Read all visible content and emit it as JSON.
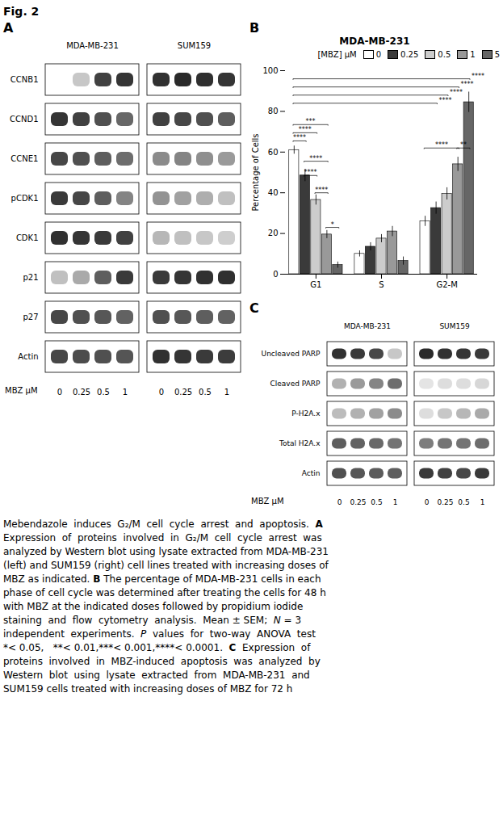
{
  "title": "Fig. 2",
  "chart_data": [
    {
      "type": "blot",
      "label": "A",
      "lane_label": "MBZ μM",
      "lanes": [
        0,
        0.25,
        0.5,
        1
      ],
      "rows": [
        "CCNB1",
        "CCND1",
        "CCNE1",
        "pCDK1",
        "CDK1",
        "p21",
        "p27",
        "Actin"
      ],
      "series": [
        {
          "name": "MDA-MB-231",
          "values": [
            [
              0.0,
              0.25,
              0.85,
              0.9
            ],
            [
              0.9,
              0.85,
              0.78,
              0.68
            ],
            [
              0.82,
              0.78,
              0.72,
              0.65
            ],
            [
              0.88,
              0.82,
              0.72,
              0.55
            ],
            [
              0.92,
              0.9,
              0.88,
              0.85
            ],
            [
              0.28,
              0.38,
              0.72,
              0.88
            ],
            [
              0.82,
              0.78,
              0.75,
              0.7
            ],
            [
              0.82,
              0.8,
              0.78,
              0.76
            ]
          ]
        },
        {
          "name": "SUM159",
          "values": [
            [
              0.92,
              0.95,
              0.93,
              0.9
            ],
            [
              0.85,
              0.82,
              0.78,
              0.72
            ],
            [
              0.52,
              0.55,
              0.5,
              0.45
            ],
            [
              0.48,
              0.42,
              0.36,
              0.28
            ],
            [
              0.32,
              0.28,
              0.25,
              0.22
            ],
            [
              0.88,
              0.9,
              0.92,
              0.93
            ],
            [
              0.78,
              0.75,
              0.72,
              0.7
            ],
            [
              0.92,
              0.9,
              0.88,
              0.87
            ]
          ]
        }
      ]
    },
    {
      "type": "bar",
      "label": "B",
      "title": "MDA-MB-231",
      "categories": [
        "G1",
        "S",
        "G2-M"
      ],
      "ylabel": "Percentage of Cells",
      "ylim": [
        0,
        100
      ],
      "yticks": [
        0,
        20,
        40,
        60,
        80,
        100
      ],
      "grid": false,
      "legend": "top-right",
      "legend_title": "[MBZ] μM",
      "series": [
        {
          "name": "0",
          "color": "#ffffff",
          "values": [
            61.0,
            10.0,
            26.0
          ],
          "errors": [
            2.0,
            1.5,
            2.5
          ]
        },
        {
          "name": "0.25",
          "color": "#3a3a3a",
          "values": [
            48.5,
            13.5,
            32.5
          ],
          "errors": [
            3.0,
            2.0,
            3.0
          ]
        },
        {
          "name": "0.5",
          "color": "#cccccc",
          "values": [
            36.5,
            17.5,
            39.5
          ],
          "errors": [
            2.5,
            2.0,
            3.0
          ]
        },
        {
          "name": "1",
          "color": "#999999",
          "values": [
            19.5,
            21.0,
            54.0
          ],
          "errors": [
            2.0,
            2.5,
            3.5
          ]
        },
        {
          "name": "5",
          "color": "#666666",
          "values": [
            4.5,
            6.5,
            84.5
          ],
          "errors": [
            1.5,
            2.0,
            5.0
          ]
        }
      ],
      "annotations": [
        {
          "from": {
            "category": "G1",
            "series": "0"
          },
          "to": {
            "category": "G1",
            "series": "0.25"
          },
          "y": 65.5,
          "text": "****"
        },
        {
          "from": {
            "category": "G1",
            "series": "0"
          },
          "to": {
            "category": "G1",
            "series": "0.5"
          },
          "y": 69.5,
          "text": "****"
        },
        {
          "from": {
            "category": "G1",
            "series": "0"
          },
          "to": {
            "category": "G1",
            "series": "1"
          },
          "y": 73.5,
          "text": "***"
        },
        {
          "from": {
            "category": "G1",
            "series": "0.25"
          },
          "to": {
            "category": "G1",
            "series": "0.5"
          },
          "y": 48.5,
          "text": "****"
        },
        {
          "from": {
            "category": "G1",
            "series": "0.25"
          },
          "to": {
            "category": "G1",
            "series": "1"
          },
          "y": 55.5,
          "text": "****"
        },
        {
          "from": {
            "category": "G1",
            "series": "0.5"
          },
          "to": {
            "category": "G1",
            "series": "1"
          },
          "y": 40.0,
          "text": "****"
        },
        {
          "from": {
            "category": "G1",
            "series": "1"
          },
          "to": {
            "category": "G1",
            "series": "5"
          },
          "y": 23.0,
          "text": "*"
        },
        {
          "from": {
            "category": "G2-M",
            "series": "0"
          },
          "to": {
            "category": "G2-M",
            "series": "1"
          },
          "y": 62.0,
          "text": "****"
        },
        {
          "from": {
            "category": "G2-M",
            "series": "1"
          },
          "to": {
            "category": "G2-M",
            "series": "5"
          },
          "y": 62.0,
          "text": "**"
        },
        {
          "from": {
            "category": "G1",
            "series": "0"
          },
          "to": {
            "category": "G2-M",
            "series": "5"
          },
          "y": 96,
          "text": "****"
        },
        {
          "from": {
            "category": "G1",
            "series": "0"
          },
          "to": {
            "category": "G2-M",
            "series": "1"
          },
          "y": 92,
          "text": "****"
        },
        {
          "from": {
            "category": "G1",
            "series": "0"
          },
          "to": {
            "category": "G2-M",
            "series": "0.5"
          },
          "y": 88,
          "text": "****"
        },
        {
          "from": {
            "category": "G1",
            "series": "0"
          },
          "to": {
            "category": "G2-M",
            "series": "0.25"
          },
          "y": 84,
          "text": "****"
        }
      ]
    },
    {
      "type": "blot",
      "label": "C",
      "lane_label": "MBZ μM",
      "lanes": [
        0,
        0.25,
        0.5,
        1
      ],
      "rows": [
        "Uncleaved PARP",
        "Cleaved PARP",
        "P-H2A.x",
        "Total H2A.x",
        "Actin"
      ],
      "series": [
        {
          "name": "MDA-MB-231",
          "values": [
            [
              0.92,
              0.88,
              0.82,
              0.25
            ],
            [
              0.35,
              0.45,
              0.55,
              0.65
            ],
            [
              0.3,
              0.35,
              0.42,
              0.52
            ],
            [
              0.72,
              0.7,
              0.67,
              0.62
            ],
            [
              0.78,
              0.75,
              0.73,
              0.72
            ]
          ]
        },
        {
          "name": "SUM159",
          "values": [
            [
              0.95,
              0.92,
              0.9,
              0.88
            ],
            [
              0.12,
              0.15,
              0.15,
              0.18
            ],
            [
              0.15,
              0.25,
              0.32,
              0.38
            ],
            [
              0.58,
              0.62,
              0.62,
              0.65
            ],
            [
              0.88,
              0.85,
              0.82,
              0.88
            ]
          ]
        }
      ]
    }
  ],
  "caption": [
    [
      {
        "text": "Mebendazole  induces  G",
        "style": "normal"
      },
      {
        "text": "₂",
        "style": "normal"
      },
      {
        "text": "/M  cell  cycle  arrest  and  apoptosis.  ",
        "style": "normal"
      },
      {
        "text": "A",
        "style": "bold"
      }
    ],
    [
      {
        "text": "Expression  of  proteins  involved  in  G",
        "style": "normal"
      },
      {
        "text": "₂",
        "style": "normal"
      },
      {
        "text": "/M  cell  cycle  arrest  was",
        "style": "normal"
      }
    ],
    [
      {
        "text": "analyzed by Western blot using lysate extracted from MDA-MB-231",
        "style": "normal"
      }
    ],
    [
      {
        "text": "(left) and SUM159 (right) cell lines treated with increasing doses of",
        "style": "normal"
      }
    ],
    [
      {
        "text": "MBZ as indicated. ",
        "style": "normal"
      },
      {
        "text": "B",
        "style": "bold"
      },
      {
        "text": " The percentage of MDA-MB-231 cells in each",
        "style": "normal"
      }
    ],
    [
      {
        "text": "phase of cell cycle was determined after treating the cells for 48 h",
        "style": "normal"
      }
    ],
    [
      {
        "text": "with MBZ at the indicated doses followed by propidium iodide",
        "style": "normal"
      }
    ],
    [
      {
        "text": "staining  and  flow  cytometry  analysis.  Mean ± SEM;  ",
        "style": "normal"
      },
      {
        "text": "N",
        "style": "italic"
      },
      {
        "text": " = 3",
        "style": "normal"
      }
    ],
    [
      {
        "text": "independent  experiments.  ",
        "style": "normal"
      },
      {
        "text": "P",
        "style": "italic"
      },
      {
        "text": "  values  for  two-way  ANOVA  test",
        "style": "normal"
      }
    ],
    [
      {
        "text": "*< 0.05,   **< 0.01,***< 0.001,****< 0.0001.  ",
        "style": "normal"
      },
      {
        "text": "C",
        "style": "bold"
      },
      {
        "text": "  Expression  of",
        "style": "normal"
      }
    ],
    [
      {
        "text": "proteins  involved  in  MBZ-induced  apoptosis  was  analyzed  by",
        "style": "normal"
      }
    ],
    [
      {
        "text": "Western  blot  using  lysate  extracted  from  MDA-MB-231  and",
        "style": "normal"
      }
    ],
    [
      {
        "text": "SUM159 cells treated with increasing doses of MBZ for 72 h",
        "style": "normal"
      }
    ]
  ]
}
